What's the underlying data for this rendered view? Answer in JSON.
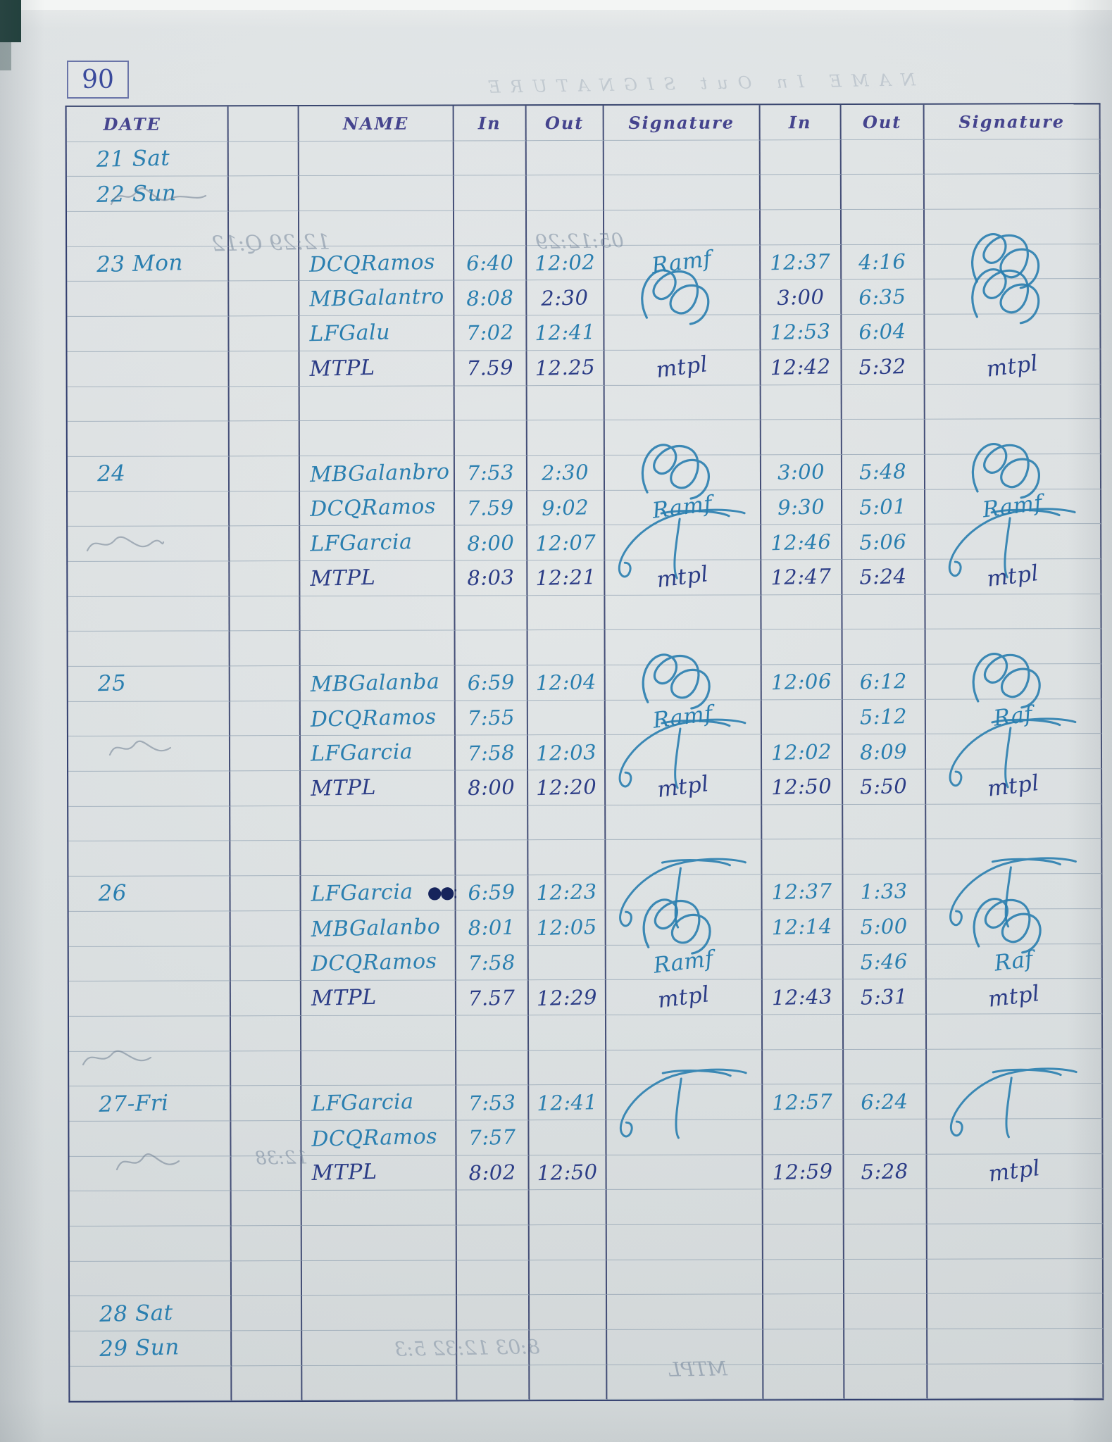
{
  "page": {
    "number": "90"
  },
  "table": {
    "header": [
      "DATE",
      "",
      "NAME",
      "In",
      "Out",
      "Signature",
      "In",
      "Out",
      "Signature"
    ],
    "rows": [
      {
        "header": true
      },
      {
        "date": "21 Sat"
      },
      {
        "date": "22 Sun"
      },
      {},
      {
        "date": "23 Mon",
        "name": "DCQRamos",
        "in": "6:40",
        "out": "12:02",
        "sig": "Ramf",
        "in2": "12:37",
        "out2": "4:16",
        "sig2": "@loops"
      },
      {
        "name": "MBGalantro",
        "in": "8:08",
        "out": "2:30",
        "sig": "@loops",
        "in2": "3:00",
        "out2": "6:35",
        "sig2": "@loops",
        "navy_cells": [
          "out",
          "in2"
        ]
      },
      {
        "name": "LFGalu",
        "in": "7:02",
        "out": "12:41",
        "in2": "12:53",
        "out2": "6:04"
      },
      {
        "name": "MTPL",
        "in": "7.59",
        "out": "12.25",
        "sig": "mtpl",
        "in2": "12:42",
        "out2": "5:32",
        "sig2": "mtpl",
        "ink": "navy"
      },
      {},
      {},
      {
        "date": "24",
        "name": "MBGalanbro",
        "in": "7:53",
        "out": "2:30",
        "sig": "@loops",
        "in2": "3:00",
        "out2": "5:48",
        "sig2": "@loops"
      },
      {
        "name": "DCQRamos",
        "in": "7.59",
        "out": "9:02",
        "sig": "Ramf",
        "in2": "9:30",
        "out2": "5:01",
        "sig2": "Ramf"
      },
      {
        "name": "LFGarcia",
        "in": "8:00",
        "out": "12:07",
        "sig": "@flourish",
        "in2": "12:46",
        "out2": "5:06",
        "sig2": "@flourish"
      },
      {
        "name": "MTPL",
        "in": "8:03",
        "out": "12:21",
        "sig": "mtpl",
        "in2": "12:47",
        "out2": "5:24",
        "sig2": "mtpl",
        "ink": "navy"
      },
      {},
      {},
      {
        "date": "25",
        "name": "MBGalanba",
        "in": "6:59",
        "out": "12:04",
        "sig": "@loops",
        "in2": "12:06",
        "out2": "6:12",
        "sig2": "@loops"
      },
      {
        "name": "DCQRamos",
        "in": "7:55",
        "sig": "Ramf",
        "out2": "5:12",
        "sig2": "Raf"
      },
      {
        "name": "LFGarcia",
        "in": "7:58",
        "out": "12:03",
        "sig": "@flourish",
        "in2": "12:02",
        "out2": "8:09",
        "sig2": "@flourish"
      },
      {
        "name": "MTPL",
        "in": "8:00",
        "out": "12:20",
        "sig": "mtpl",
        "in2": "12:50",
        "out2": "5:50",
        "sig2": "mtpl",
        "ink": "navy"
      },
      {},
      {},
      {
        "date": "26",
        "name": "LFGarcia",
        "name_extra": "●●:",
        "in": "6:59",
        "out": "12:23",
        "sig": "@flourish",
        "in2": "12:37",
        "out2": "1:33",
        "sig2": "@flourish"
      },
      {
        "name": "MBGalanbo",
        "in": "8:01",
        "out": "12:05",
        "sig": "@loops",
        "in2": "12:14",
        "out2": "5:00",
        "sig2": "@loops"
      },
      {
        "name": "DCQRamos",
        "in": "7:58",
        "sig": "Ramf",
        "out2": "5:46",
        "sig2": "Raf"
      },
      {
        "name": "MTPL",
        "in": "7.57",
        "out": "12:29",
        "sig": "mtpl",
        "in2": "12:43",
        "out2": "5:31",
        "sig2": "mtpl",
        "ink": "navy"
      },
      {},
      {},
      {
        "date": "27-Fri",
        "name": "LFGarcia",
        "in": "7:53",
        "out": "12:41",
        "sig": "@flourish",
        "in2": "12:57",
        "out2": "6:24",
        "sig2": "@flourish"
      },
      {
        "name": "DCQRamos",
        "in": "7:57"
      },
      {
        "name": "MTPL",
        "in": "8:02",
        "out": "12:50",
        "in2": "12:59",
        "out2": "5:28",
        "sig2": "mtpl",
        "ink": "navy"
      },
      {},
      {},
      {},
      {
        "date": "28 Sat"
      },
      {
        "date": "29 Sun"
      },
      {}
    ]
  },
  "bleedthrough": [
    {
      "text": "12:29 Q:12"
    },
    {
      "text": "05:12:29"
    },
    {
      "text": "12:38"
    },
    {
      "text": "8:03 12:32 5:3"
    },
    {
      "text": "MTPL"
    },
    {
      "text": "NAME  In  Out  SIGNATURE"
    }
  ]
}
